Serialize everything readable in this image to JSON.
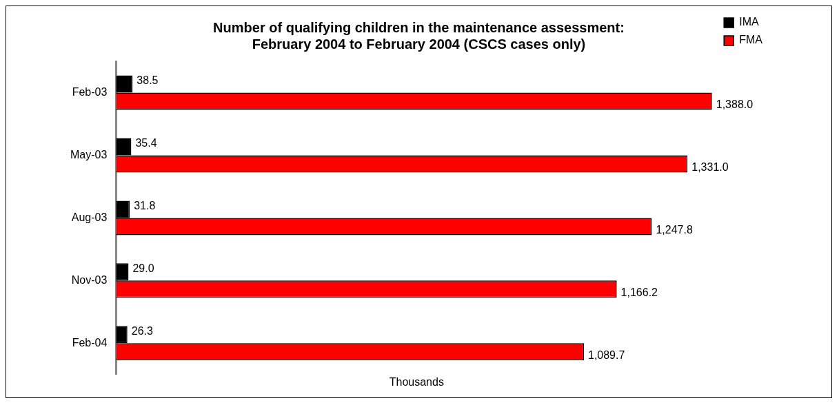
{
  "chart_data": {
    "type": "bar",
    "orientation": "horizontal",
    "title": "Number of qualifying children in the maintenance assessment:\nFebruary 2004 to February 2004 (CSCS cases only)",
    "xlabel": "Thousands",
    "categories": [
      "Feb-03",
      "May-03",
      "Aug-03",
      "Nov-03",
      "Feb-04"
    ],
    "series": [
      {
        "name": "IMA",
        "color": "#000000",
        "values": [
          38.5,
          35.4,
          31.8,
          29.0,
          26.3
        ],
        "value_labels": [
          "38.5",
          "35.4",
          "31.8",
          "29.0",
          "26.3"
        ]
      },
      {
        "name": "FMA",
        "color": "#ff0000",
        "values": [
          1388.0,
          1331.0,
          1247.8,
          1166.2,
          1089.7
        ],
        "value_labels": [
          "1,388.0",
          "1,331.0",
          "1,247.8",
          "1,166.2",
          "1,089.7"
        ]
      }
    ],
    "tick_labels": "y",
    "legend": "top right",
    "grid": false
  }
}
